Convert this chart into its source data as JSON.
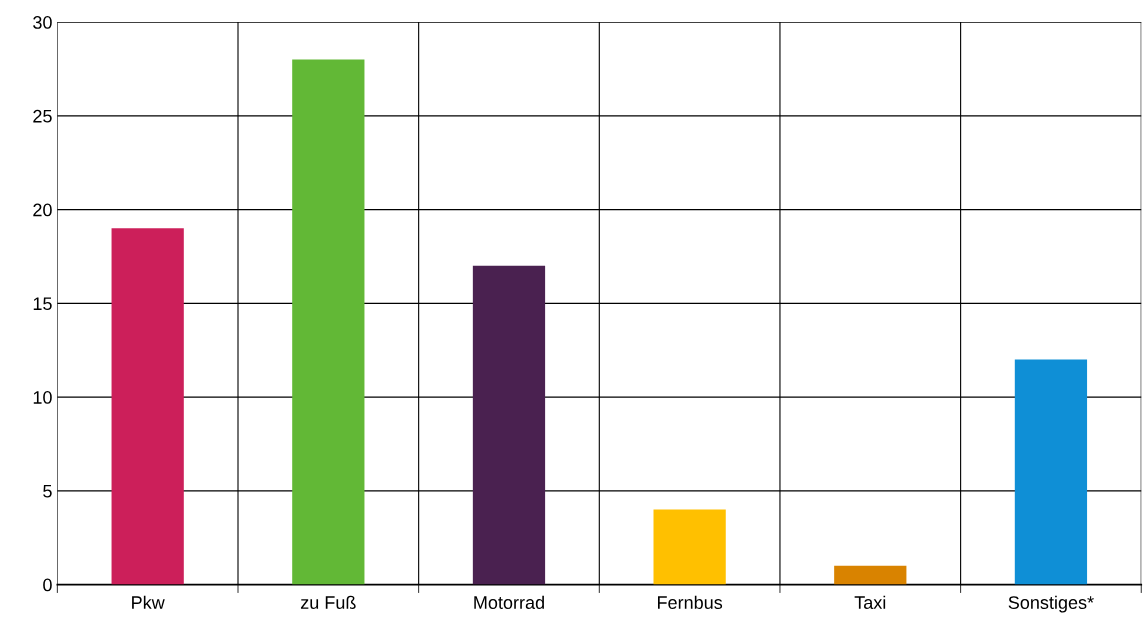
{
  "chart_data": {
    "type": "bar",
    "categories": [
      "Pkw",
      "zu Fuß",
      "Motorrad",
      "Fernbus",
      "Taxi",
      "Sonstiges*"
    ],
    "values": [
      19,
      28,
      17,
      4,
      1,
      12
    ],
    "colors": [
      "#cc1f5a",
      "#62b836",
      "#4a2150",
      "#ffc000",
      "#d98300",
      "#0f8fd6"
    ],
    "ylim": [
      0,
      30
    ],
    "yticks": [
      0,
      5,
      10,
      15,
      20,
      25,
      30
    ],
    "grid": true
  }
}
